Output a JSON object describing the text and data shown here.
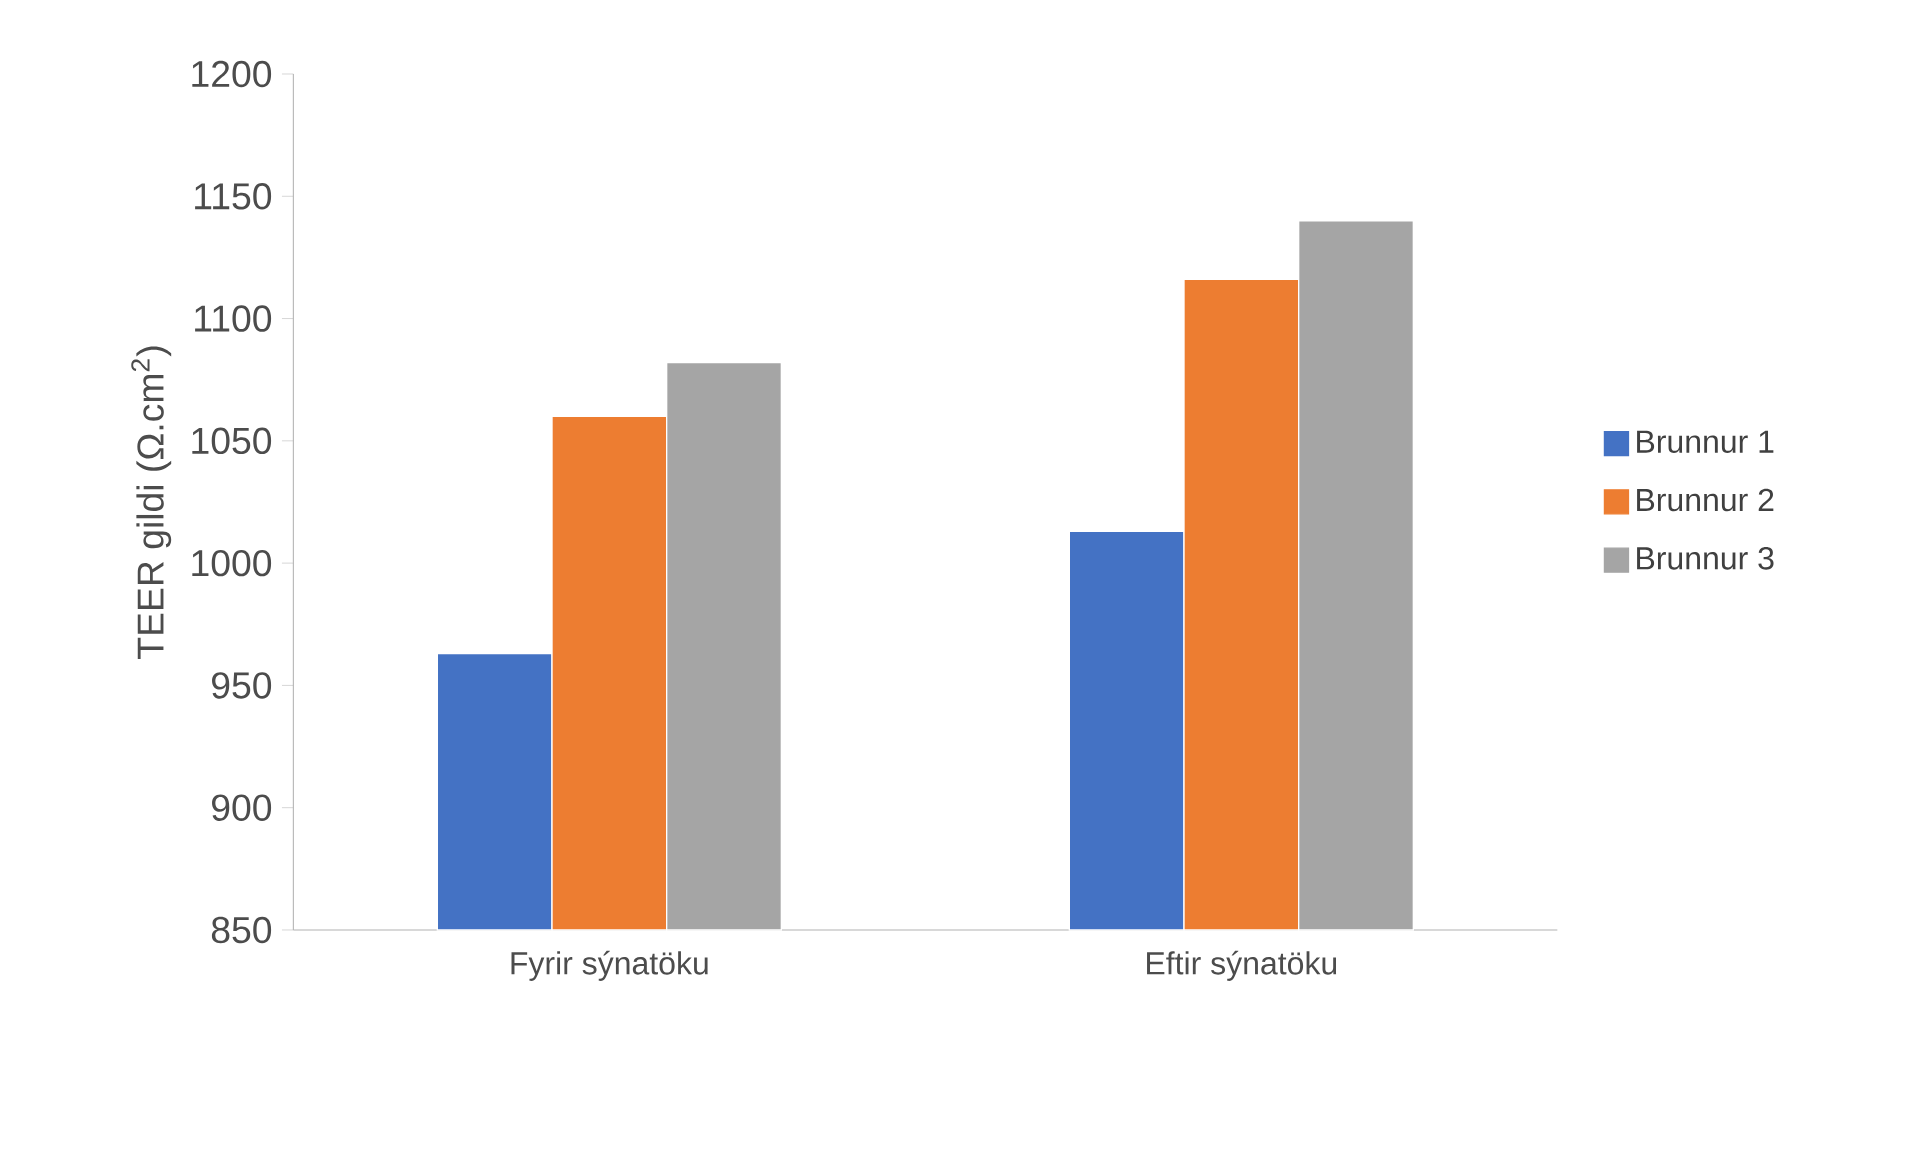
{
  "chart_data": {
    "type": "bar",
    "ylabel": "TEER gildi (Ω.cm$^{2}$)",
    "categories": [
      "Fyrir sýnatöku",
      "Eftir sýnatöku"
    ],
    "series": [
      {
        "name": "Brunnur 1",
        "color": "#4472c4",
        "values": [
          963,
          1013
        ]
      },
      {
        "name": "Brunnur 2",
        "color": "#ed7d31",
        "values": [
          1060,
          1116
        ]
      },
      {
        "name": "Brunnur 3",
        "color": "#a5a5a5",
        "values": [
          1082,
          1140
        ]
      }
    ],
    "ylim": [
      850,
      1200
    ],
    "yticks": [
      850,
      900,
      950,
      1000,
      1050,
      1100,
      1150,
      1200
    ],
    "grid": false,
    "legend": "right"
  }
}
